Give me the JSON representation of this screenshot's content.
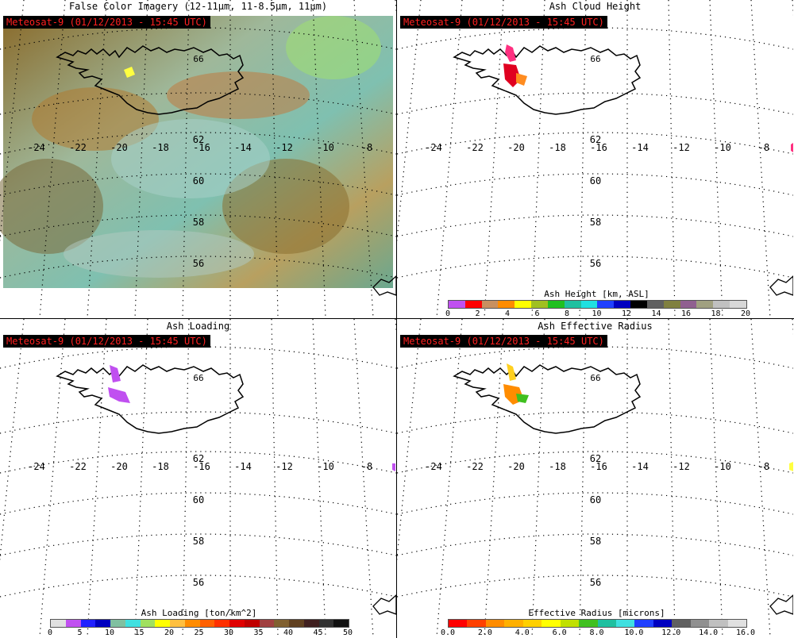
{
  "timestamp": "Meteosat-9  (01/12/2013 - 15:45 UTC)",
  "lon_labels": [
    "-24",
    "-22",
    "-20",
    "-18",
    "-16",
    "-14",
    "-12",
    "-10",
    "-8"
  ],
  "lat_labels": [
    "62",
    "60",
    "58",
    "56"
  ],
  "lat_label_top": "66",
  "panels": [
    {
      "id": "false-color",
      "title": "False Color Imagery (12-11µm, 11-8.5µm, 11µm)"
    },
    {
      "id": "ash-height",
      "title": "Ash Cloud Height",
      "colorbar": {
        "label": "Ash Height [km, ASL]",
        "ticks": [
          "0",
          "2",
          "4",
          "6",
          "8",
          "10",
          "12",
          "14",
          "16",
          "18",
          "20"
        ],
        "colors": [
          "#c050f0",
          "#ff0000",
          "#c89060",
          "#ff8c00",
          "#ffff00",
          "#a0c020",
          "#20c020",
          "#20c0a0",
          "#20e0e0",
          "#2040ff",
          "#0000c0",
          "#000000",
          "#606060",
          "#808040",
          "#906090",
          "#a0a080",
          "#c0c0c0",
          "#d8d8d8"
        ]
      }
    },
    {
      "id": "ash-loading",
      "title": "Ash Loading",
      "colorbar": {
        "label": "Ash Loading [ton/km^2]",
        "ticks": [
          "0",
          "5",
          "10",
          "15",
          "20",
          "25",
          "30",
          "35",
          "40",
          "45",
          "50"
        ],
        "colors": [
          "#e0e0e0",
          "#c050f0",
          "#2020ff",
          "#0000c0",
          "#80c0a0",
          "#40e0e0",
          "#a0e060",
          "#ffff00",
          "#ffc040",
          "#ff8c00",
          "#ff6000",
          "#ff3000",
          "#e00000",
          "#c00000",
          "#a04040",
          "#806030",
          "#604020",
          "#402020",
          "#303030",
          "#101010"
        ]
      }
    },
    {
      "id": "effective-radius",
      "title": "Ash Effective Radius",
      "colorbar": {
        "label": "Effective Radius [microns]",
        "ticks": [
          "0.0",
          "2.0",
          "4.0",
          "6.0",
          "8.0",
          "10.0",
          "12.0",
          "14.0",
          "16.0"
        ],
        "colors": [
          "#ff0000",
          "#ff4000",
          "#ff8c00",
          "#ffb000",
          "#ffd000",
          "#ffff00",
          "#c0e000",
          "#40c020",
          "#20c0a0",
          "#40e0e0",
          "#2040ff",
          "#0000c0",
          "#606060",
          "#909090",
          "#c0c0c0",
          "#e0e0e0"
        ]
      }
    }
  ]
}
